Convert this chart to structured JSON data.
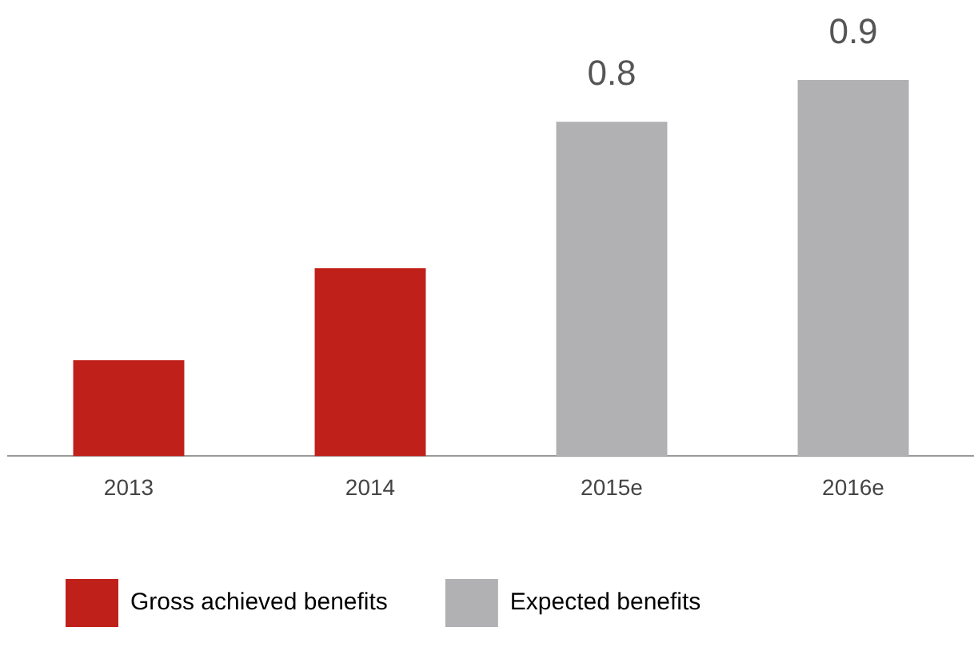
{
  "chart_data": {
    "type": "bar",
    "categories": [
      "2013",
      "2014",
      "2015e",
      "2016e"
    ],
    "series": [
      {
        "name": "Gross achieved benefits",
        "color": "#c0201a",
        "values": [
          0.23,
          0.45,
          null,
          null
        ],
        "value_labels": [
          null,
          null,
          null,
          null
        ]
      },
      {
        "name": "Expected benefits",
        "color": "#b1b1b3",
        "values": [
          null,
          null,
          0.8,
          0.9
        ],
        "value_labels": [
          null,
          null,
          "0.8",
          "0.9"
        ]
      }
    ],
    "tick_labels": "x",
    "grid": false,
    "legend": "bottom"
  }
}
